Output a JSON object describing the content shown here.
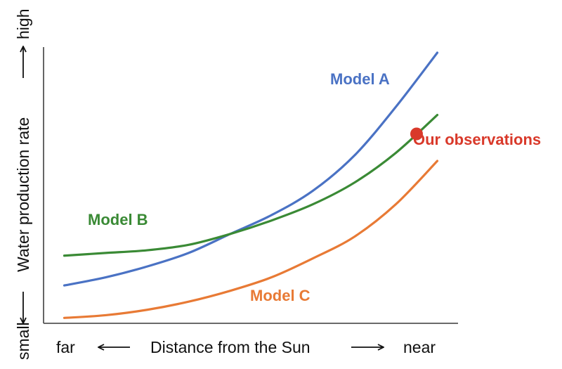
{
  "chart_data": {
    "type": "line",
    "xlabel": "Distance from the Sun",
    "x_low_label": "far",
    "x_high_label": "near",
    "ylabel": "Water production rate",
    "y_low_label": "small",
    "y_high_label": "high",
    "grid": false,
    "xlim": [
      0,
      1
    ],
    "ylim": [
      0,
      1
    ],
    "series": [
      {
        "name": "Model A",
        "color": "#4a72c4",
        "x": [
          0.05,
          0.15,
          0.25,
          0.35,
          0.45,
          0.55,
          0.65,
          0.75,
          0.85,
          0.95
        ],
        "y": [
          0.14,
          0.17,
          0.21,
          0.26,
          0.33,
          0.4,
          0.49,
          0.62,
          0.8,
          1.0
        ]
      },
      {
        "name": "Model B",
        "color": "#3a8a35",
        "x": [
          0.05,
          0.15,
          0.25,
          0.35,
          0.45,
          0.55,
          0.65,
          0.75,
          0.85,
          0.95
        ],
        "y": [
          0.25,
          0.26,
          0.27,
          0.29,
          0.33,
          0.38,
          0.44,
          0.52,
          0.63,
          0.77
        ]
      },
      {
        "name": "Model C",
        "color": "#e87a35",
        "x": [
          0.05,
          0.15,
          0.25,
          0.35,
          0.45,
          0.55,
          0.65,
          0.75,
          0.85,
          0.95
        ],
        "y": [
          0.02,
          0.03,
          0.05,
          0.08,
          0.12,
          0.17,
          0.24,
          0.32,
          0.44,
          0.6
        ]
      }
    ],
    "points": [
      {
        "name": "Our observations",
        "color": "#d9392a",
        "x": 0.9,
        "y": 0.7
      }
    ]
  }
}
